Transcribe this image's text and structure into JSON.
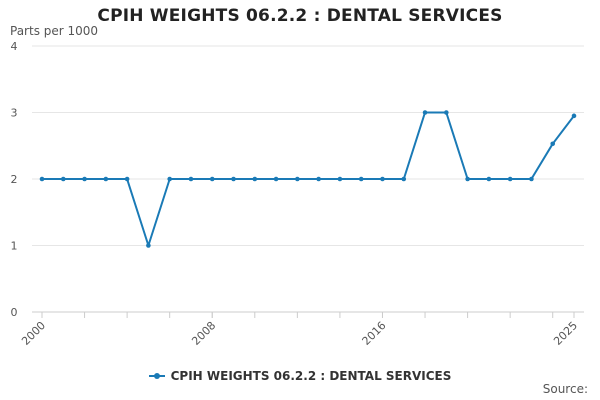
{
  "chart_data": {
    "type": "line",
    "title": "CPIH WEIGHTS 06.2.2 : DENTAL SERVICES",
    "ylabel": "Parts per 1000",
    "xlabel": "",
    "ylim": [
      0,
      4
    ],
    "yticks": [
      "0",
      "1",
      "2",
      "3",
      "4"
    ],
    "xlim": [
      2000,
      2025
    ],
    "xticks": [
      "2000",
      "2008",
      "2016",
      "2025"
    ],
    "grid": true,
    "legend_position": "bottom",
    "series": [
      {
        "name": "CPIH WEIGHTS 06.2.2 : DENTAL SERVICES",
        "color": "#1a7ab6",
        "x": [
          2000,
          2001,
          2002,
          2003,
          2004,
          2005,
          2006,
          2007,
          2008,
          2009,
          2010,
          2011,
          2012,
          2013,
          2014,
          2015,
          2016,
          2017,
          2018,
          2019,
          2020,
          2021,
          2022,
          2023,
          2024,
          2025
        ],
        "values": [
          2,
          2,
          2,
          2,
          2,
          1,
          2,
          2,
          2,
          2,
          2,
          2,
          2,
          2,
          2,
          2,
          2,
          2,
          3,
          3,
          2,
          2,
          2,
          2,
          2.53,
          2.95
        ]
      }
    ]
  },
  "footer": {
    "source_label": "Source:"
  }
}
